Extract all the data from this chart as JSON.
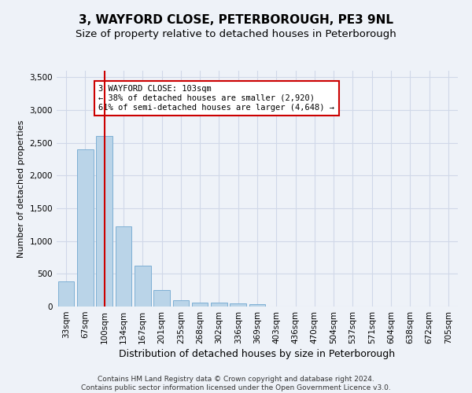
{
  "title": "3, WAYFORD CLOSE, PETERBOROUGH, PE3 9NL",
  "subtitle": "Size of property relative to detached houses in Peterborough",
  "xlabel": "Distribution of detached houses by size in Peterborough",
  "ylabel": "Number of detached properties",
  "categories": [
    "33sqm",
    "67sqm",
    "100sqm",
    "134sqm",
    "167sqm",
    "201sqm",
    "235sqm",
    "268sqm",
    "302sqm",
    "336sqm",
    "369sqm",
    "403sqm",
    "436sqm",
    "470sqm",
    "504sqm",
    "537sqm",
    "571sqm",
    "604sqm",
    "638sqm",
    "672sqm",
    "705sqm"
  ],
  "values": [
    390,
    2400,
    2600,
    1220,
    630,
    250,
    100,
    60,
    55,
    50,
    35,
    0,
    0,
    0,
    0,
    0,
    0,
    0,
    0,
    0,
    0
  ],
  "bar_color": "#bad4e8",
  "bar_edge_color": "#7dafd4",
  "vline_x": 2,
  "vline_color": "#cc0000",
  "annotation_line1": "3 WAYFORD CLOSE: 103sqm",
  "annotation_line2": "← 38% of detached houses are smaller (2,920)",
  "annotation_line3": "61% of semi-detached houses are larger (4,648) →",
  "annotation_box_color": "#ffffff",
  "annotation_box_edge_color": "#cc0000",
  "ylim": [
    0,
    3600
  ],
  "yticks": [
    0,
    500,
    1000,
    1500,
    2000,
    2500,
    3000,
    3500
  ],
  "grid_color": "#d0d8e8",
  "bg_color": "#eef2f8",
  "plot_bg_color": "#eef2f8",
  "footer_text": "Contains HM Land Registry data © Crown copyright and database right 2024.\nContains public sector information licensed under the Open Government Licence v3.0.",
  "title_fontsize": 11,
  "subtitle_fontsize": 9.5,
  "xlabel_fontsize": 9,
  "ylabel_fontsize": 8,
  "tick_fontsize": 7.5,
  "annotation_fontsize": 7.5,
  "footer_fontsize": 6.5
}
